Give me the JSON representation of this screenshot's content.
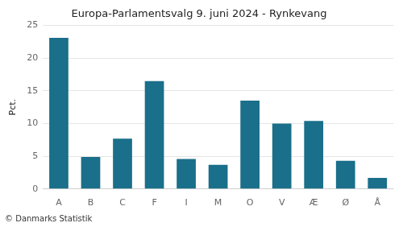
{
  "chart_data": {
    "type": "bar",
    "title": "Europa-Parlamentsvalg 9. juni 2024 - Rynkevang",
    "categories": [
      "A",
      "B",
      "C",
      "F",
      "I",
      "M",
      "O",
      "V",
      "Æ",
      "Ø",
      "Å"
    ],
    "values": [
      23.1,
      4.9,
      7.7,
      16.5,
      4.6,
      3.7,
      13.5,
      10.0,
      10.4,
      4.3,
      1.7
    ],
    "color": "#1a6f8a",
    "ylabel": "Pct.",
    "ylim": [
      0,
      25
    ],
    "yticks": [
      0,
      5,
      10,
      15,
      20,
      25
    ],
    "grid": true,
    "annotations": [
      "© Danmarks Statistik"
    ]
  }
}
